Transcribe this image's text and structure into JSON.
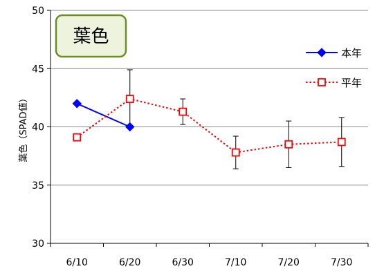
{
  "title_box": {
    "text": "葉色",
    "border_color": "#6b8e23",
    "fill_color": "#eef3dd"
  },
  "chart_data": {
    "type": "line",
    "title": "",
    "xlabel": "",
    "ylabel": "葉色（SPAD値）",
    "categories": [
      "6/10",
      "6/20",
      "6/30",
      "7/10",
      "7/20",
      "7/30"
    ],
    "ylim": [
      30,
      50
    ],
    "yticks": [
      30,
      35,
      40,
      45,
      50
    ],
    "grid": true,
    "legend_position": "top-right",
    "series": [
      {
        "name": "本年",
        "color": "#0000ff",
        "line": "solid",
        "marker": "diamond-filled",
        "values": [
          42.0,
          40.0,
          null,
          null,
          null,
          null
        ]
      },
      {
        "name": "平年",
        "color": "#ff0000",
        "line": "dotted",
        "marker": "square-open",
        "values": [
          39.1,
          42.4,
          41.3,
          37.8,
          38.5,
          38.7
        ],
        "error_low": [
          null,
          40.1,
          40.2,
          36.4,
          36.5,
          36.6
        ],
        "error_high": [
          null,
          44.9,
          42.4,
          39.2,
          40.5,
          40.8
        ]
      }
    ]
  }
}
